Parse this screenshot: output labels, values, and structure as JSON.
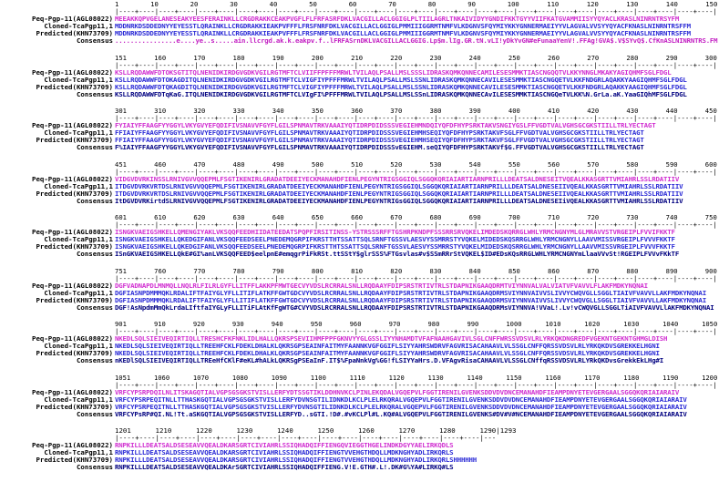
{
  "labels": {
    "seq1": "Peq-Pgp-11(AGL08022)",
    "seq2": "Cloned-TcaPgp11,1",
    "seq3": "Predicted(KHN73709)",
    "consensus": "Consensus"
  },
  "blocks": [
    {
      "ruler": "1        10        20        30        40        50        60        70        80        90        100       110       120       130       140       150",
      "seq1": "MEEAKKQPVGELANESEAKYEESFERAINKLLCRGDRAKKCEAKPVGFLFLFRFASRFDKLVACGILLACLGGIGLPLTIILAGRLTNKAIVIDYYGNDIFKKTGYYVIIFKATGVAMMIISYYQYACLKRASLNINRNTRSYFM",
      "seq2": "MDDNRKDSDDEDNYYEYESSTLQRAINKLLCRGDRAKKIEAKPVFFFLFRSFNRFDKLVACGILLACLGGIGLPMMIIIGGRMTNMFVLKDGNVSFQYMIYKKYGNNERMAEIYYVLAGVALVVSYYQYACFKNASLNINRNTRSFFM",
      "seq3": "MDDNRKDSDDEDNYYEYESSTLQRAINKLLCRGDRAKKIEAKPVFFFLFRSFNRFDKLVACGILLACLGGIGLPMMIIIGGRMTNMFVLKDGNVSFQYMIYKKYGNNERMAEIYYVLAGVALVVSYYQYACFKNASLNINRNTRSFFM",
      "consensus": "................e....ye..s.....ain.llcrgd.ak.k.eakpv.f..lFRFASrnDKLVACGILLACLGGIG.Lp$m.lIg.GR.tN.vLI!yDkYvGN#eFunaaYenV!.FFAg!GVA$.V$SYvQ$.CfKnASLNINRNTRS.FM"
    },
    {
      "ruler": "151       160       170       180       190       200       210       220       230       240       250       260       270       280       290       300",
      "seq1": "KSLLRQDAWWFDTOKSGTITQLNENIDKIRDGVGDKVGILRGTMFTCLVIIFFPFFFMRWLTVILAQLPSALLMSLSSSLIDRASKQMKQNNECAMILESESMMKTIASCNGQQTVLKKYNNGLMKAKYAGIQHMFSGLFDGL",
      "seq2": "KSLLRQDAWWFDTOKAGDITQLNENIDKIRDGVGDKVGILRGTMFTCLVIGFIYPFFFMRWLTVILAQLPSALLMSLSSNLIDRASKQMKQNNECAVILESESMMKTIASCNGQETVLKKFNDGRLAQAKKYAAGIQHMFSGLFDGL",
      "seq3": "KSLLRQDAWWFDTQKAGDITQLNENIDKIRDGVGDKVGILRGTMFTCLVIGFIYPFFFMRWLTVILAQLPSALLMSLSSNLIDRASKQMKQNNECAVILESESMMKTIASCNGQETVLKKFNDGRLAQAKKYAAGIQHMFSGLFDGL",
      "consensus": "KSLLRQDAWWFDTqKaG.ITQLNENIDKIRDGVGDKVGILRGTMFTCLVIgFI%PFFFMRWLTVILAQLPSALLMSLSSnLIDRASKQMKQNNECAvILESESMMKTIASCNGQeTVLKK%N.GrLa.aK.YaaGIQhMFSGLFDGL"
    },
    {
      "ruler": "301       310       320       330       340       350       360       370       380       390       400       410       420       430       440       450",
      "seq1": "FYIAIYFFAAGFYYGGYLVKYGVYEFQDIFIVSNAVVFGYFLGILSPNMAVTRKVAAAIYQTIDRPDIDSSSVEGIEHMNDQIYQFDFHYPSRKTAKVSNGIYGSLFFVGDTVALVGHSGCGKSTIILLTRLYECTAGT",
      "seq2": "FFIAIYFFAAGFYYGGYLVKYGVYEFQDIFIVSNAVVFGYFLGILSPNMAVTRKVAAAIYQTIDRPDIDSSSVEGIEHMHSEQIYQFDFHYPSRKTAKVFSGLFFVGDTVALVGHSGCGKSTIILLTRLYECTAGT",
      "seq3": "FFIAIYFFAAGFYYGGYLVKYGVYEFQDIFIVSNAVVFGYFLGILSPNMAVTRKVAAAIYQTIDRPDIDSSSVEGIEHMHSEQIYQFDFHYPSRKTAKVFSGLFFVGDTVALVGHSGCGKSTIILLTRLYECTAGT",
      "consensus": "F%IAIYFFAAGFYYGGYLVKYGVYEFQDIFIVSNAVVFGYFLGILSPNMAVTRKVAAAIYQTIDRPDIDSSSvEGIEHM.seQIYQFDFHYPSRKTAKVf$G.FFVGDTVALVGHSGCGKSTIILLTRLYECTAGT"
    },
    {
      "ruler": "451       460       470       480       490       500       510       520       530       540       550       560       570       580       590       600",
      "seq1": "VIDGVDVRKINSSLRNIVGVVQQEPMLFSGTIKENIRLGRADATDEEIYECKMANAHDFIENLPEGYNTRIGSGGIQLSGGQKQRIAIARTIARNPRILLLDEATSALDNESEITVQEALKKASGRTTVMIAHRLSSLRDATIIV",
      "seq2": "ITDGVDVRKVRTDSLRNIVGVVQQEPMLFSGTIKENIRLGRADATDEEIYECKMANAHDFIENLPEGYNTRIGSGGIQLSGGQKQRIAIARTIARNPRILLLDEATSALDNESEIIVQEALKKASGRTTVMIAHRLSSLRDATIIV",
      "seq3": "ITDGVDVRKVRTDSLRNIVGVVQQEPMLFSGTIKENIRLGRADATDEEIYECKMANAHDFIENLPEGYNTRIGSGGIQLSGGQKQRIAIARTIARNPRILLLDEATSALDNESEIIVQEALKKASGRTTVMIAHRLSSLRDATIIV",
      "consensus": "ItDGVDVRKirtdSLRNIVGVVQQEPMLFSGTIKENIRLGRADATDEEIYECKMANAHDFIENLPEGYNTRIGsGGIQLSGGQKQRIAIARTIARNPRILLLDEATSALDNESEIiVQEALKKASGRTTVMIAHRLSSLRDATIIV"
    },
    {
      "ruler": "601       610       620       630       640       650       660       670       680       690       700       710       720       730       740       750",
      "seq1": "ISNGKVAEIGSHKELLQMENGIYAKLVKSQQFEEDHIIDATEEDATSPQPFIRSITINSS-YSTRSSSRFFTGSHRPKNDPFSSSRRSRVQKELIMDEDSKQRRGLWHLYRMCNGNYMLGLMRAVVSTVRGEIPLFVVIFKKTF",
      "seq2": "ISNGKVAEIGSHKELLQKEDGIFANLVKSQQFEEDSEELPNEDEMQGRPIFKRSTTHTSSATTSQLSRNFTGSSVLAESVYSSMRRSTYVQKELMIDEDSKQSRRGLWHLYRMCNGNYLLAAVVMISSVRGEIPLFVVVFKKTF",
      "seq3": "ISNGKVAEIGSHKELLQKEDGIFANLVKSQQFEEDSEELPNEDEMQGRPIFKRSTTHTSSATTSQLSRNFTGSSVLAESVYSSMRRSTYVQKELMIDEDSKQSRRGLWHLYRMCNGNYLLAAVVMISSVRGEIPLFVVVFKKTF",
      "consensus": "ISnGKVAEIGSHKELLQkE#GI%anLVKSQQFEED$eelpnE#emqgrPiFkRSt.ttSStY$glrSSS%FTGsvlas#v$SSmRRrStVQKEL$ID#EDsKQsRRGLWHLYRMCNGNYmLlaaVVvSt!RGEIPLFVVvFKkTF"
    },
    {
      "ruler": "751       760       770       780       790       800       810       820       830       840       850       860       870       880       890       900",
      "seq1": "DGFVADNAPDLMNMQLLNQLRLFILRLGYFLLITFFLAKKPFMWTGECVYVDSLRCRRALSNLLRQDAAYFDIPSRSTRTIVTRLSTDAPNIKGAAQDRMTVIYNNVALVALVIATVFVAVVLFLAKFMDKYNQNAI",
      "seq2": "DGFIASNPDMMMQKLRDALIFTFAIYGLYFLLITIFLATKFFGWTGDCVYVDSLRCRRALSNLLRQDAAYFDIPSRSTRTIVTRLSTDAPNIKGAAQDRMSVIYNNVAIVVSLIVVYCWQVGLLSGGLTIAIVFVAVVLLAKFMDKYNQNAI",
      "seq3": "DGFIASNPDMMMQKLRDALIFTFAIYGLYFLLITIFLATKFFGWTGDCVYVDSLRCRRALSNLLRQDAAYFDIPSRSTRTIVTRLSTDAPNIKGAAQDRMSVIYNNVAIVVSLIVVYCWQVGLLSGGLTIAIVFVAVVLLAKFMDKYNQNAI",
      "consensus": "DGF!AsNpdmMmQkLrdaLIftfaIYGLyFLLITiFLAtKfFgWTG#CVYVDSLRCRRALSNLLRQDAAYFDIPSRSTRTIVTRLSTDAPNIKGAAQDRMsVIYNNVA!VVaL!.Lv!vCWQVGLLSGGLTiAIVFVAVVLlAKFMDKYNQNAI"
    },
    {
      "ruler": "901       910       920       930       940       950       960       970       980       990       1000      1010      1020      1030      1040      1050",
      "seq1": "NKEDLSQLSIEIVEQIRTIQLLTRESHCFKFNKLIDLHALLQKRSPSEVIIHMFPPFGKNVYYGLGSSLIYYNHAMDTVFAFNAAHGAVIVLSGLCNFFWRSSVDSVLRLYRKQKDNGREDFVGEKNTGEKNTGHMGLDISH",
      "seq2": "NKEDLSQLSIEIVEQIRTIQLLTREEHFCKLFDEKLDHALKLQKRSGPSEAINFAITMYFAANNKVGFGGIFLSIYYAHRSWDRVFAGVRISACAHAAVLVLSSGLCNFFQRSSVDSVLRLYRKQKDVSGREKKELHGNI",
      "seq3": "NKEDLSQLSIEIVEQIRTIQLLTREEHFCKLFDEKLDHALKLQKRSGPSEAINFAITMYFAANNKVGFGGIFLSIYYAHRSWDRVFAGVRISACAHAAVLVLSSGLCNFFQRSSVDSVLRLYRKQKDVSGREKKELHGNI",
      "consensus": "nKEDlSQLSIEIVEQIRTIQLLTREeHfCKlF#eKL#hALkLQKRSgPSEaInF.IT$%FpaNnkVg%GG!fLSIYYaHrs.D.VFAgvRisaCAHAAVLVLSSGLCNffqRSSVDSVLRLYRkQKDvsGrekkEkLHg#I"
    },
    {
      "ruler": "1051      1060      1070      1080      1090      1100      1110      1120      1130      1140      1150      1160      1170      1180      1190      1200",
      "seq1": "VRFCYPSRPDQILNLITSKAGQTIALVGPSGSGKSTVISLLERFYDTSSGTIKLDDHNVKCLPINLEKQDALVGQEPVLFGGTIRENILGVENKSDDVDVDNCEMANAHDFIEAMPDNYETEVGERGAALSGGQKQRIAIARAIV",
      "seq2": "VRFCYPSRPEQITNLLTTHASKGQTIALVGPSGSGKSTVISLLERFYDVNSGTILIDNKDLKCLPLELRKQRALVGQEPVLFGGTIRENILGVENKSDDVDVDNCEMANAHDFIEAMPDNYETEVGERGAALSGGQKQRIAIARAIV",
      "seq3": "VRFCYPSRPEQITNLLTTHASKGQTIALVGPSGSGKSTVISLLERFYDVNSGTILIDNKDLKCLPLELRKQRALVGQEPVLFGGTIRENILGVENKSDDVDVDNCEMANAHDFIEAMPDNYETEVGERGAALSGGQKQRIAIARAIV",
      "consensus": "VRFCYPsRP#QI.NL!Tt.aSKGQTIALVGPSGSGKSTVISLLERFYD..sGTI.!D#.#vKCLPl#L.KQ#ALVGQEPVLFGGTIRENILGVENKS#DV#V#NCEMANAHDFIEAMPDNYETEVGERGAALSGGQKQRIAIARAIV"
    },
    {
      "ruler": "1201      1210      1220      1230      1240      1250      1260      1270      1280      1290|1293",
      "seq1": "RNPKILLLDEATSALDSESEAVVQEALDKARSGRTCIVIAHRLSSIQHADQIFFIENGQVIEGGTHGELINDKDGYYAELIRKQDLS",
      "seq2": "RNPKILLLDEATSALDSESEAVVQEALDKARSGRTCIVIAHRLSSIQHADQIFFIENGTVVEHGTHDQLLMDKNGHYADLIRKQRLS",
      "seq3": "RNPKILLLDEATSALDSESEAVVQEALDKARSGRTCIVIAHRLSSIQHADQIFFIENGTVVEHGTHDQLLMDKNGHYADLIRKQRLSHHHHHH",
      "consensus": "RNPKILLLDEATSALDSESEAVVQEALDKArSGRTCIVIAHRLSSIQHADQIFFIENG.V!E.GTH#.L!.DK#G%YA#LIRKQ#LS"
    }
  ]
}
